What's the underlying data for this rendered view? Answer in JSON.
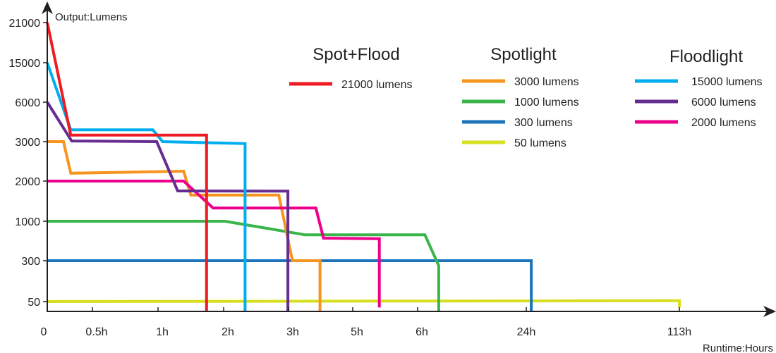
{
  "chart_data": {
    "type": "line",
    "ylabel": "Output:Lumens",
    "xlabel": "Runtime:Hours",
    "x_scale": "piecewise (non-linear, evenly spaced ticks)",
    "y_scale": "piecewise (non-linear, evenly spaced ticks)",
    "x_ticks": [
      {
        "value": 0,
        "label": "0"
      },
      {
        "value": 0.5,
        "label": "0.5h"
      },
      {
        "value": 1,
        "label": "1h"
      },
      {
        "value": 2,
        "label": "2h"
      },
      {
        "value": 3,
        "label": "3h"
      },
      {
        "value": 5,
        "label": "5h"
      },
      {
        "value": 6,
        "label": "6h"
      },
      {
        "value": 24,
        "label": "24h"
      },
      {
        "value": 113,
        "label": "113h"
      }
    ],
    "y_ticks": [
      {
        "value": 50,
        "label": "50"
      },
      {
        "value": 300,
        "label": "300"
      },
      {
        "value": 1000,
        "label": "1000"
      },
      {
        "value": 2000,
        "label": "2000"
      },
      {
        "value": 3000,
        "label": "3000"
      },
      {
        "value": 6000,
        "label": "6000"
      },
      {
        "value": 15000,
        "label": "15000"
      },
      {
        "value": 21000,
        "label": "21000"
      }
    ],
    "grid": false,
    "legend_placement": "top-right",
    "groups": [
      {
        "title": "Spot+Flood",
        "series": [
          0
        ]
      },
      {
        "title": "Spotlight",
        "series": [
          1,
          2,
          3,
          4
        ]
      },
      {
        "title": "Floodlight",
        "series": [
          5,
          6,
          7
        ]
      }
    ],
    "series": [
      {
        "name": "21000 lumens",
        "color": "#ed1c24",
        "points": [
          [
            0,
            21000
          ],
          [
            0.26,
            3500
          ],
          [
            1.74,
            3500
          ],
          [
            1.74,
            0
          ]
        ]
      },
      {
        "name": "3000 lumens",
        "color": "#f7941d",
        "points": [
          [
            0,
            3000
          ],
          [
            0.18,
            3000
          ],
          [
            0.26,
            2200
          ],
          [
            1.39,
            2250
          ],
          [
            1.5,
            1650
          ],
          [
            2.85,
            1650
          ],
          [
            3.12,
            300
          ],
          [
            3.98,
            300
          ],
          [
            3.98,
            0
          ]
        ]
      },
      {
        "name": "1000 lumens",
        "color": "#39b54a",
        "points": [
          [
            0,
            1000
          ],
          [
            2.02,
            1000
          ],
          [
            3.51,
            760
          ],
          [
            7.2,
            760
          ],
          [
            9.5,
            270
          ],
          [
            9.5,
            0
          ]
        ]
      },
      {
        "name": "300 lumens",
        "color": "#1c75bc",
        "points": [
          [
            0,
            300
          ],
          [
            26.9,
            300
          ],
          [
            26.9,
            0
          ]
        ]
      },
      {
        "name": "50 lumens",
        "color": "#d7df23",
        "points": [
          [
            0,
            50
          ],
          [
            113,
            55
          ],
          [
            113,
            20
          ]
        ]
      },
      {
        "name": "15000 lumens",
        "color": "#00aeef",
        "points": [
          [
            0,
            15000
          ],
          [
            0.26,
            3900
          ],
          [
            0.96,
            3900
          ],
          [
            1.07,
            3000
          ],
          [
            2.33,
            2950
          ],
          [
            2.33,
            0
          ]
        ]
      },
      {
        "name": "6000 lumens",
        "color": "#662d91",
        "points": [
          [
            0,
            6000
          ],
          [
            0.27,
            3050
          ],
          [
            0.99,
            3000
          ],
          [
            1.3,
            1755
          ],
          [
            2.99,
            1750
          ],
          [
            2.99,
            0
          ]
        ]
      },
      {
        "name": "2000 lumens",
        "color": "#ec008c",
        "points": [
          [
            0,
            2000
          ],
          [
            1.39,
            2000
          ],
          [
            1.84,
            1330
          ],
          [
            3.85,
            1330
          ],
          [
            4.09,
            700
          ],
          [
            5.41,
            690
          ],
          [
            5.41,
            20
          ]
        ]
      }
    ]
  }
}
